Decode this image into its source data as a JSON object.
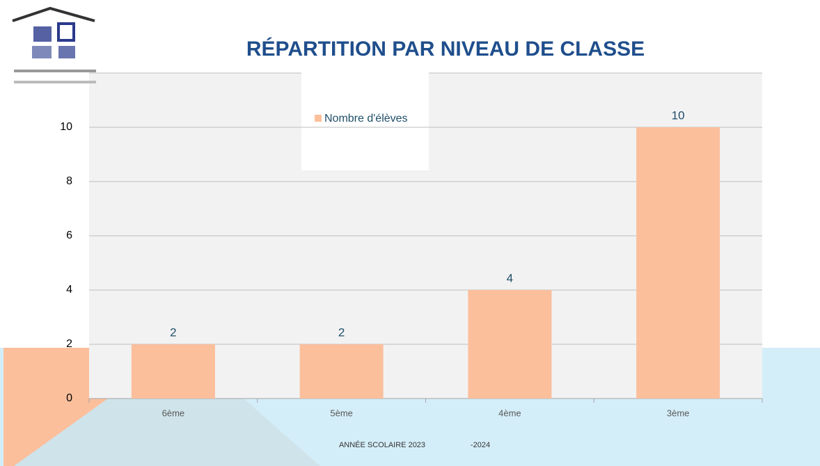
{
  "chart_data": {
    "type": "bar",
    "title": "RÉPARTITION PAR NIVEAU DE CLASSE",
    "categories": [
      "6ème",
      "5ème",
      "4ème",
      "3ème"
    ],
    "series": [
      {
        "name": "Nombre d'élèves",
        "color": "#fbbf9c",
        "values": [
          2,
          2,
          4,
          10
        ]
      }
    ],
    "ylim": [
      0,
      12
    ],
    "yticks": [
      0,
      2,
      4,
      6,
      8,
      10
    ],
    "grid": true,
    "footer": [
      "ANNÉE SCOLAIRE 2023",
      "-2024"
    ]
  }
}
